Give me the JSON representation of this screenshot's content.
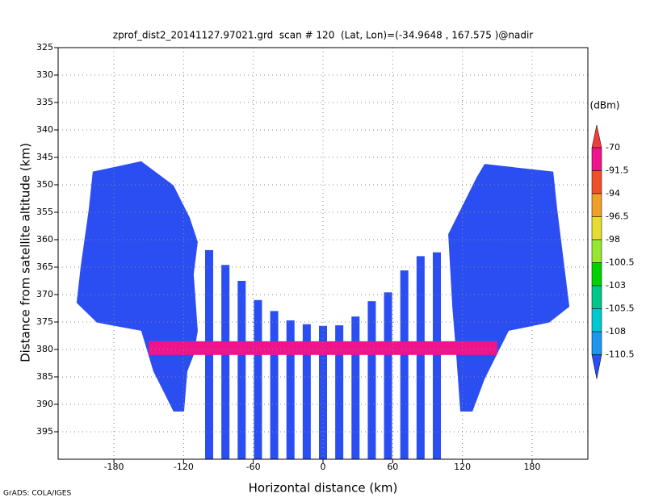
{
  "chart_data": {
    "type": "profile",
    "title": "zprof_dist2_20141127.97021.grd  scan # 120  (Lat, Lon)=(-34.9648 , 167.575 )@nadir",
    "xlabel": "Horizontal distance (km)",
    "ylabel": "Distance from satellite altitude (km)",
    "footer": "GrADS: COLA/IGES",
    "xlim": [
      -228,
      228
    ],
    "ylim": [
      325,
      400
    ],
    "xticks": [
      -180,
      -120,
      -60,
      0,
      60,
      120,
      180
    ],
    "yticks": [
      325,
      330,
      335,
      340,
      345,
      350,
      355,
      360,
      365,
      370,
      375,
      380,
      385,
      390,
      395
    ],
    "grid": true,
    "colorbar": {
      "unit": "(dBm)",
      "levels": [
        -70,
        -91.5,
        -94,
        -96.5,
        -98,
        -100.5,
        -103,
        -105.5,
        -108,
        -110.5
      ],
      "colors": [
        "#f03c3c",
        "#f0148c",
        "#f05028",
        "#f0a028",
        "#e6dc32",
        "#96e632",
        "#00d200",
        "#00c88c",
        "#00c8d2",
        "#1e96f0",
        "#2b4ef2"
      ]
    },
    "beams": {
      "x": [
        -98,
        -84,
        -70,
        -56,
        -42,
        -28,
        -14,
        0,
        14,
        28,
        42,
        56,
        70,
        84,
        98
      ],
      "top": [
        361.9,
        364.6,
        367.5,
        371,
        373,
        374.7,
        375.4,
        375.7,
        375.6,
        374,
        371.2,
        369.6,
        365.6,
        363,
        362.3
      ],
      "bottom": [
        400,
        400,
        400,
        400,
        400,
        400,
        400,
        400,
        400,
        400,
        400,
        400,
        400,
        400,
        400
      ]
    },
    "regions": [
      {
        "x": [
          -198.2,
          -156.5,
          -128.7,
          -114.7,
          -107.8,
          -111.3,
          -107.8,
          -111.3,
          -116.8,
          -119.6,
          -128.7,
          -139.1,
          -146,
          -156.5,
          -194.7,
          -212.1,
          -208.6,
          -201.7
        ],
        "altitude": [
          347.6,
          345.7,
          350.1,
          356,
          360.4,
          366.3,
          376.6,
          381,
          384,
          391.3,
          391.3,
          386.9,
          384,
          376.6,
          375.1,
          371.5,
          364.9,
          354.6
        ]
      },
      {
        "x": [
          139.1,
          198.2,
          201.7,
          212.1,
          194.7,
          159.9,
          149.5,
          139.1,
          128.7,
          118.2,
          114.7,
          111.3,
          107.8,
          118.2,
          132.1
        ],
        "altitude": [
          346.2,
          347.6,
          354.6,
          372.2,
          375.1,
          376.6,
          381,
          385.4,
          391.3,
          391.3,
          381,
          372.2,
          359,
          354.6,
          348.7
        ]
      }
    ],
    "surface": {
      "x": [
        -150,
        150
      ],
      "altitude": [
        378.5,
        381
      ]
    }
  }
}
